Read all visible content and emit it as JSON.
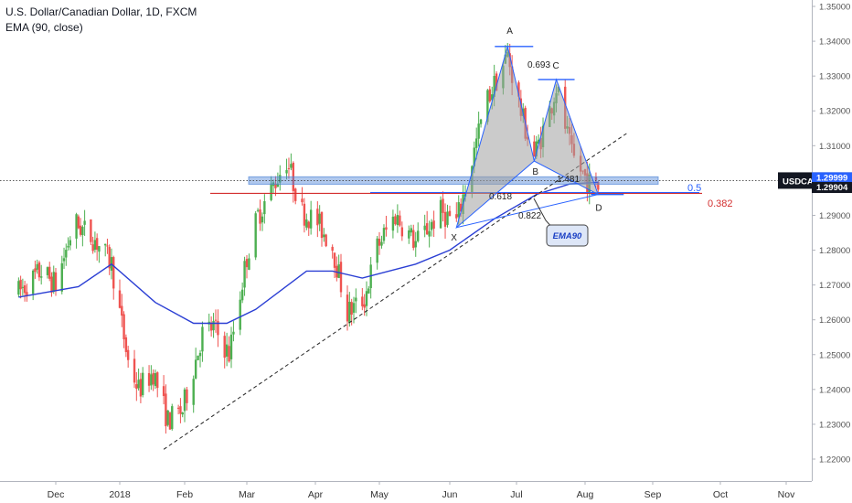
{
  "header": {
    "symbol_title": "U.S. Dollar/Canadian Dollar, 1D, FXCM",
    "indicator": "EMA (90, close)"
  },
  "colors": {
    "up": "#4caf50",
    "down": "#ef5350",
    "ema": "#2b3fd4",
    "zone": "#4f84d8",
    "pattern_fill": "#a0a0a0",
    "pattern_line": "#2962ff",
    "red_line": "#d32f2f",
    "price_tag": "#131722",
    "last_tag": "#2962ff",
    "grid_text": "#555555"
  },
  "price_axis": {
    "ticks": [
      "1.35000",
      "1.34000",
      "1.33000",
      "1.32000",
      "1.31000",
      "1.30000",
      "1.29000",
      "1.28000",
      "1.27000",
      "1.26000",
      "1.25000",
      "1.24000",
      "1.23000",
      "1.22000"
    ],
    "last_price": "1.29999",
    "symbol_tag": "USDCAD",
    "ema_value": "1.29904"
  },
  "time_axis": {
    "labels": [
      "Dec",
      "2018",
      "Feb",
      "Mar",
      "Apr",
      "May",
      "Jun",
      "Jul",
      "Aug",
      "Sep",
      "Oct",
      "Nov"
    ]
  },
  "annotations": {
    "points": {
      "X": "X",
      "A": "A",
      "B": "B",
      "C": "C",
      "D": "D"
    },
    "ratios": {
      "xab": "0.693",
      "xad": "0.822",
      "bcd": "1.481",
      "bd_fib": "0.618"
    },
    "fib_05": "0.5",
    "fib_0382": "0.382",
    "ema_callout": "EMA90"
  },
  "chart_data": {
    "type": "candlestick",
    "title": "U.S. Dollar/Canadian Dollar, 1D, FXCM",
    "ylim": [
      1.215,
      1.353
    ],
    "price_levels": {
      "last": 1.29999,
      "ema90": 1.29904
    },
    "pattern_points": [
      {
        "label": "X",
        "date": "2018-06-04",
        "price": 1.2865
      },
      {
        "label": "A",
        "date": "2018-06-27",
        "price": 1.3385
      },
      {
        "label": "B",
        "date": "2018-07-09",
        "price": 1.3056
      },
      {
        "label": "C",
        "date": "2018-07-19",
        "price": 1.329
      },
      {
        "label": "D",
        "date": "2018-08-07",
        "price": 1.296
      }
    ],
    "support_zone": [
      1.2992,
      1.3008
    ],
    "fib_0382_level": 1.2963,
    "ema_anchors": [
      {
        "date": "2017-11-13",
        "value": 1.2665
      },
      {
        "date": "2017-12-12",
        "value": 1.2695
      },
      {
        "date": "2017-12-28",
        "value": 1.276
      },
      {
        "date": "2018-01-18",
        "value": 1.265
      },
      {
        "date": "2018-02-05",
        "value": 1.259
      },
      {
        "date": "2018-02-20",
        "value": 1.259
      },
      {
        "date": "2018-03-05",
        "value": 1.263
      },
      {
        "date": "2018-03-28",
        "value": 1.274
      },
      {
        "date": "2018-04-09",
        "value": 1.274
      },
      {
        "date": "2018-04-23",
        "value": 1.272
      },
      {
        "date": "2018-05-17",
        "value": 1.276
      },
      {
        "date": "2018-06-01",
        "value": 1.28
      },
      {
        "date": "2018-06-21",
        "value": 1.289
      },
      {
        "date": "2018-07-10",
        "value": 1.296
      },
      {
        "date": "2018-07-25",
        "value": 1.299
      },
      {
        "date": "2018-08-07",
        "value": 1.2995
      }
    ],
    "trendline": [
      {
        "date": "2018-01-22",
        "price": 1.2228
      },
      {
        "date": "2018-08-20",
        "price": 1.3135
      }
    ],
    "candle_anchors": [
      {
        "date": "2017-11-13",
        "price": 1.268
      },
      {
        "date": "2017-11-24",
        "price": 1.274
      },
      {
        "date": "2017-12-01",
        "price": 1.27
      },
      {
        "date": "2017-12-10",
        "price": 1.288
      },
      {
        "date": "2017-12-20",
        "price": 1.283
      },
      {
        "date": "2017-12-28",
        "price": 1.276
      },
      {
        "date": "2018-01-05",
        "price": 1.248
      },
      {
        "date": "2018-01-10",
        "price": 1.24
      },
      {
        "date": "2018-01-17",
        "price": 1.245
      },
      {
        "date": "2018-01-24",
        "price": 1.231
      },
      {
        "date": "2018-01-31",
        "price": 1.234
      },
      {
        "date": "2018-02-09",
        "price": 1.256
      },
      {
        "date": "2018-02-14",
        "price": 1.258
      },
      {
        "date": "2018-02-21",
        "price": 1.25
      },
      {
        "date": "2018-03-01",
        "price": 1.278
      },
      {
        "date": "2018-03-06",
        "price": 1.29
      },
      {
        "date": "2018-03-19",
        "price": 1.306
      },
      {
        "date": "2018-03-26",
        "price": 1.291
      },
      {
        "date": "2018-04-02",
        "price": 1.288
      },
      {
        "date": "2018-04-09",
        "price": 1.281
      },
      {
        "date": "2018-04-16",
        "price": 1.262
      },
      {
        "date": "2018-04-24",
        "price": 1.266
      },
      {
        "date": "2018-04-30",
        "price": 1.281
      },
      {
        "date": "2018-05-08",
        "price": 1.29
      },
      {
        "date": "2018-05-17",
        "price": 1.282
      },
      {
        "date": "2018-05-28",
        "price": 1.291
      },
      {
        "date": "2018-06-04",
        "price": 1.288
      },
      {
        "date": "2018-06-10",
        "price": 1.303
      },
      {
        "date": "2018-06-17",
        "price": 1.322
      },
      {
        "date": "2018-06-27",
        "price": 1.336
      },
      {
        "date": "2018-07-04",
        "price": 1.317
      },
      {
        "date": "2018-07-09",
        "price": 1.307
      },
      {
        "date": "2018-07-16",
        "price": 1.32
      },
      {
        "date": "2018-07-19",
        "price": 1.327
      },
      {
        "date": "2018-07-26",
        "price": 1.307
      },
      {
        "date": "2018-08-03",
        "price": 1.299
      },
      {
        "date": "2018-08-07",
        "price": 1.298
      }
    ]
  }
}
